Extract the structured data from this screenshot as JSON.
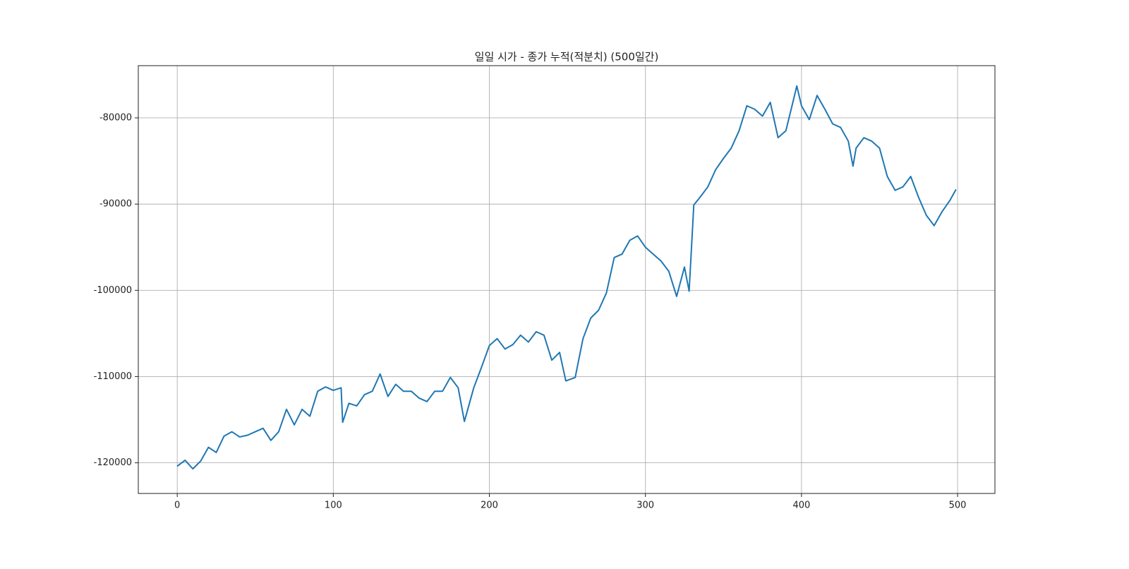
{
  "chart_data": {
    "type": "line",
    "title": "일일 시가 - 종가 누적(적분치) (500일간)",
    "x": [
      0,
      5,
      10,
      15,
      20,
      25,
      30,
      35,
      40,
      45,
      50,
      55,
      60,
      65,
      70,
      75,
      80,
      85,
      90,
      95,
      100,
      105,
      106,
      110,
      115,
      120,
      125,
      130,
      135,
      140,
      145,
      150,
      155,
      160,
      165,
      170,
      175,
      180,
      184,
      190,
      195,
      200,
      205,
      210,
      215,
      220,
      225,
      230,
      235,
      240,
      245,
      249,
      255,
      260,
      265,
      270,
      275,
      280,
      285,
      290,
      295,
      300,
      305,
      310,
      315,
      320,
      325,
      328,
      331,
      335,
      340,
      345,
      350,
      355,
      360,
      365,
      370,
      375,
      380,
      385,
      390,
      395,
      397,
      400,
      405,
      410,
      415,
      420,
      425,
      430,
      433,
      435,
      440,
      445,
      450,
      455,
      460,
      465,
      470,
      475,
      480,
      485,
      490,
      495,
      499
    ],
    "series": [
      {
        "name": "line",
        "color": "#1f77b4",
        "values": [
          -120400,
          -119700,
          -120700,
          -119800,
          -118200,
          -118800,
          -116900,
          -116400,
          -117000,
          -116800,
          -116400,
          -116000,
          -117400,
          -116400,
          -113800,
          -115600,
          -113800,
          -114600,
          -111700,
          -111200,
          -111600,
          -111300,
          -115300,
          -113100,
          -113400,
          -112100,
          -111700,
          -109700,
          -112300,
          -110900,
          -111700,
          -111700,
          -112500,
          -112900,
          -111700,
          -111700,
          -110100,
          -111300,
          -115200,
          -111300,
          -108900,
          -106400,
          -105600,
          -106800,
          -106300,
          -105200,
          -106000,
          -104800,
          -105200,
          -108100,
          -107200,
          -110500,
          -110100,
          -105600,
          -103200,
          -102300,
          -100300,
          -96200,
          -95800,
          -94200,
          -93700,
          -95000,
          -95800,
          -96600,
          -97800,
          -100700,
          -97300,
          -100100,
          -90100,
          -89200,
          -88000,
          -86000,
          -84700,
          -83500,
          -81500,
          -78600,
          -79000,
          -79800,
          -78200,
          -82300,
          -81500,
          -77800,
          -76300,
          -78600,
          -80200,
          -77400,
          -79000,
          -80700,
          -81100,
          -82700,
          -85600,
          -83500,
          -82300,
          -82700,
          -83500,
          -86800,
          -88400,
          -88000,
          -86800,
          -89200,
          -91300,
          -92500,
          -90900,
          -89600,
          -88300
        ]
      }
    ],
    "xlim": [
      -24.95,
      523.95
    ],
    "xticks": [
      0,
      100,
      200,
      300,
      400,
      500
    ],
    "ylim": [
      -123555,
      -73945
    ],
    "yticks": [
      -120000,
      -110000,
      -100000,
      -90000,
      -80000
    ],
    "grid": true
  }
}
